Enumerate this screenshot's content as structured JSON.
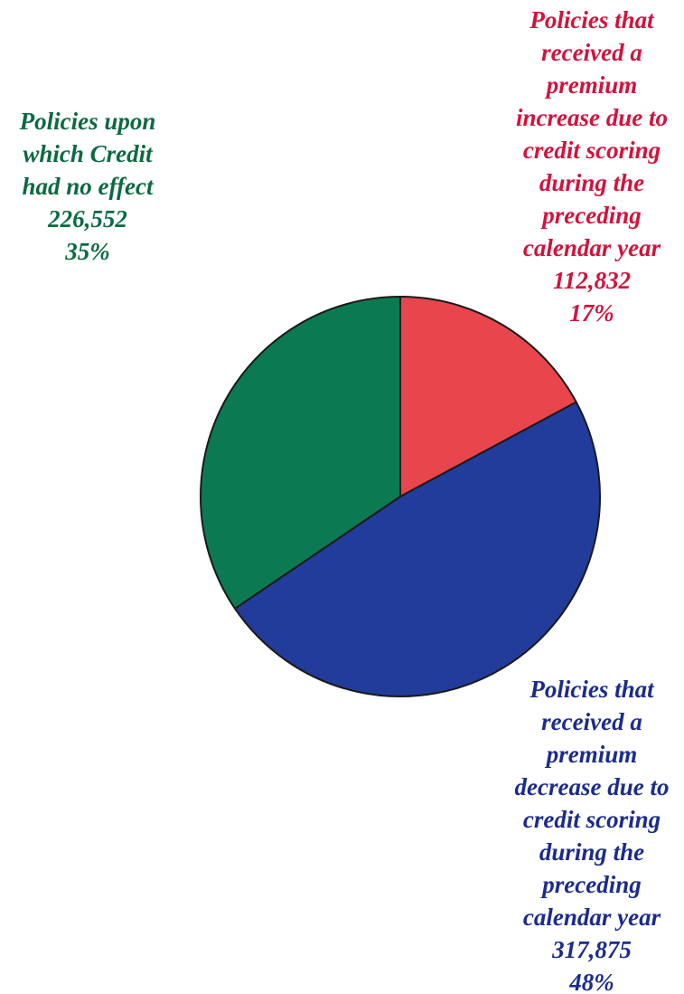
{
  "chart_data": {
    "type": "pie",
    "categories": [
      "Policies that\nreceived a\npremium\nincrease due to\ncredit scoring\nduring the\npreceding\ncalendar year",
      "Policies that\nreceived a\npremium\ndecrease due to\ncredit scoring\nduring the\npreceding\ncalendar year",
      "Policies upon\nwhich Credit\nhad no effect"
    ],
    "values": [
      112832,
      317875,
      226552
    ],
    "value_labels": [
      "112,832",
      "317,875",
      "226,552"
    ],
    "percentages": [
      17,
      48,
      35
    ],
    "percentage_labels": [
      "17%",
      "48%",
      "35%"
    ],
    "colors": [
      "#e8454c",
      "#213c9b",
      "#0b7a52"
    ],
    "label_colors": [
      "#d3123c",
      "#1b2b8e",
      "#0a6a42"
    ]
  }
}
